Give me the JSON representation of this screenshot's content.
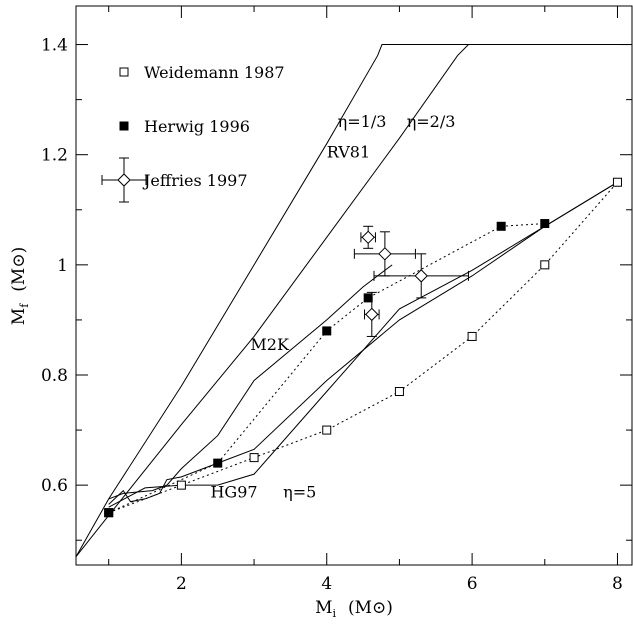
{
  "chart_data": {
    "type": "line",
    "xlabel": "M",
    "xlabel_sub": "i",
    "xlabel_unit": "(M⊙)",
    "ylabel": "M",
    "ylabel_sub": "f",
    "ylabel_unit": "(M⊙)",
    "xlim": [
      0.55,
      8.2
    ],
    "ylim": [
      0.455,
      1.47
    ],
    "x_ticks": [
      2,
      4,
      6,
      8
    ],
    "y_ticks": [
      0.6,
      0.8,
      1.0,
      1.2,
      1.4
    ],
    "x_tick_labels": [
      "2",
      "4",
      "6",
      "8"
    ],
    "y_tick_labels": [
      "0.6",
      "0.8",
      "1",
      "1.2",
      "1.4"
    ],
    "grid": false,
    "legend_position": "top-left",
    "legend": [
      {
        "label": "Weidemann 1987",
        "marker": "open-square"
      },
      {
        "label": "Herwig 1996",
        "marker": "filled-square"
      },
      {
        "label": "Jeffries 1997",
        "marker": "open-diamond-errorbar"
      }
    ],
    "annotations": [
      {
        "text": "η=1/3",
        "x": 4.15,
        "y": 1.25
      },
      {
        "text": "η=2/3",
        "x": 5.1,
        "y": 1.25
      },
      {
        "text": "RV81",
        "x": 4.0,
        "y": 1.195
      },
      {
        "text": "M2K",
        "x": 2.95,
        "y": 0.845
      },
      {
        "text": "HG97",
        "x": 2.4,
        "y": 0.578
      },
      {
        "text": "η=5",
        "x": 3.4,
        "y": 0.578
      }
    ],
    "series": [
      {
        "name": "Weidemann 1987",
        "style": "dotted",
        "marker": "open-square",
        "x": [
          1.0,
          2.0,
          3.0,
          4.0,
          5.0,
          6.0,
          7.0,
          8.0
        ],
        "y": [
          0.55,
          0.6,
          0.65,
          0.7,
          0.77,
          0.87,
          1.0,
          1.15
        ]
      },
      {
        "name": "Herwig 1996",
        "style": "dotted",
        "marker": "filled-square",
        "x": [
          1.0,
          2.5,
          4.0,
          4.57,
          6.4,
          7.0
        ],
        "y": [
          0.55,
          0.64,
          0.88,
          0.94,
          1.07,
          1.075
        ]
      },
      {
        "name": "Jeffries 1997",
        "style": "none",
        "marker": "open-diamond-errorbar",
        "points": [
          {
            "x": 4.57,
            "y": 1.05,
            "xerr": 0.1,
            "yerr": 0.02
          },
          {
            "x": 4.8,
            "y": 1.02,
            "xerr": 0.42,
            "yerr": 0.04
          },
          {
            "x": 5.3,
            "y": 0.98,
            "xerr": 0.65,
            "yerr": 0.04
          },
          {
            "x": 4.62,
            "y": 0.91,
            "xerr": 0.1,
            "yerr": 0.04
          }
        ]
      },
      {
        "name": "η=1/3",
        "style": "solid",
        "marker": "none",
        "x": [
          0.55,
          1.0,
          2.0,
          3.0,
          4.0,
          4.7,
          4.76,
          8.2
        ],
        "y": [
          0.47,
          0.575,
          0.78,
          1.0,
          1.22,
          1.38,
          1.4,
          1.4
        ]
      },
      {
        "name": "η=2/3",
        "style": "solid",
        "marker": "none",
        "x": [
          0.55,
          1.0,
          2.0,
          3.0,
          4.0,
          5.0,
          5.8,
          5.95,
          8.2
        ],
        "y": [
          0.47,
          0.545,
          0.71,
          0.87,
          1.05,
          1.23,
          1.38,
          1.4,
          1.4
        ]
      },
      {
        "name": "M2K",
        "style": "solid",
        "marker": "none",
        "x": [
          1.0,
          1.2,
          1.6,
          1.8,
          2.0,
          2.5,
          3.0,
          4.0,
          4.5,
          4.9
        ],
        "y": [
          0.575,
          0.585,
          0.59,
          0.6,
          0.63,
          0.69,
          0.79,
          0.9,
          0.96,
          1.0
        ]
      },
      {
        "name": "HG97",
        "style": "solid",
        "marker": "none",
        "x": [
          1.0,
          1.2,
          1.3,
          1.5,
          1.7,
          1.8,
          2.0,
          2.5,
          3.0,
          4.0,
          5.0,
          6.0,
          7.0,
          8.0
        ],
        "y": [
          0.565,
          0.59,
          0.57,
          0.575,
          0.585,
          0.61,
          0.615,
          0.64,
          0.665,
          0.79,
          0.9,
          0.98,
          1.07,
          1.15
        ]
      },
      {
        "name": "η=5",
        "style": "solid",
        "marker": "none",
        "x": [
          1.0,
          1.5,
          2.0,
          2.5,
          3.0,
          4.0,
          5.0,
          6.0,
          7.0,
          8.0
        ],
        "y": [
          0.56,
          0.595,
          0.6,
          0.6,
          0.62,
          0.77,
          0.92,
          0.99,
          1.07,
          1.15
        ]
      }
    ]
  }
}
